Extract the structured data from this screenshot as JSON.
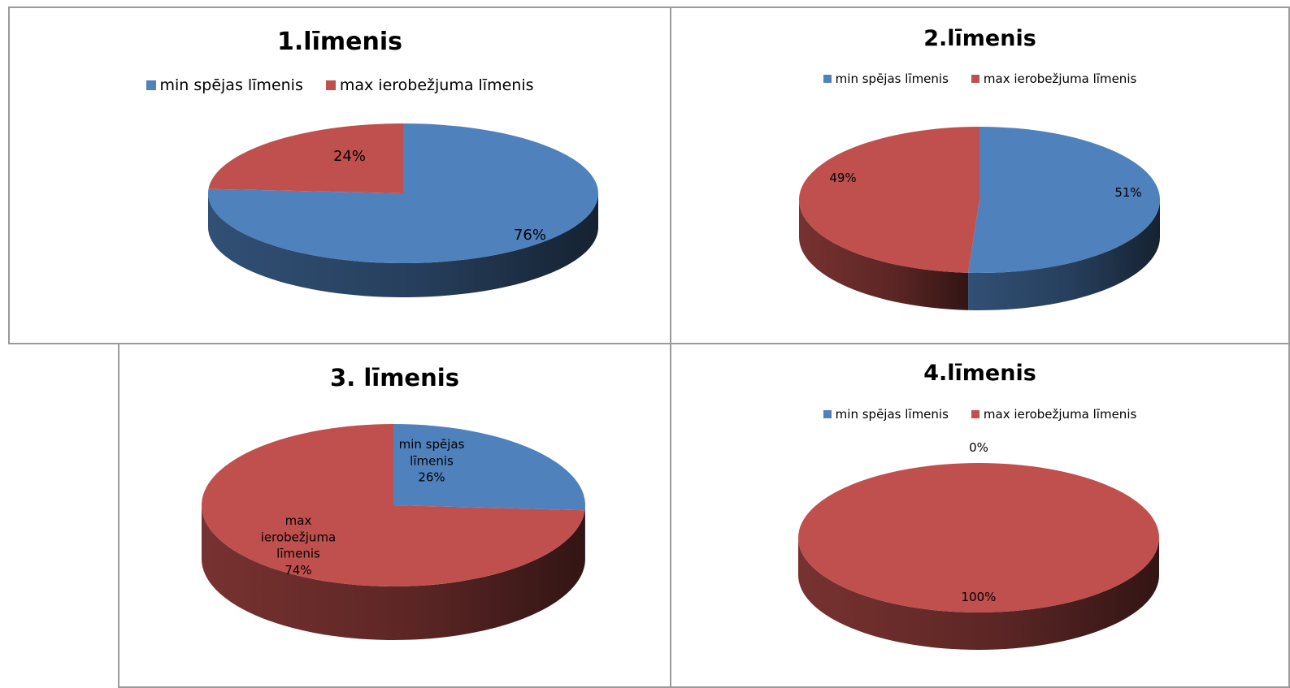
{
  "colors": {
    "min": "#4f81bd",
    "max": "#c0504d"
  },
  "chart_data": [
    {
      "type": "pie",
      "title": "1.līmenis",
      "legend": [
        "min spējas līmenis",
        "max ierobežjuma līmenis"
      ],
      "legend_position": "top",
      "categories": [
        "min spējas līmenis",
        "max ierobežjuma līmenis"
      ],
      "values": [
        76,
        24
      ],
      "data_labels": [
        "76%",
        "24%"
      ]
    },
    {
      "type": "pie",
      "title": "2.līmenis",
      "legend": [
        "min spējas līmenis",
        "max ierobežjuma līmenis"
      ],
      "legend_position": "top",
      "categories": [
        "min spējas līmenis",
        "max ierobežjuma līmenis"
      ],
      "values": [
        51,
        49
      ],
      "data_labels": [
        "51%",
        "49%"
      ]
    },
    {
      "type": "pie",
      "title": "3. līmenis",
      "legend": [],
      "legend_position": "none",
      "categories": [
        "min spējas līmenis",
        "max ierobežjuma līmenis"
      ],
      "values": [
        26,
        74
      ],
      "data_labels": [
        [
          "min spējas",
          "līmenis",
          "26%"
        ],
        [
          "max",
          "ierobežjuma",
          "līmenis",
          "74%"
        ]
      ]
    },
    {
      "type": "pie",
      "title": "4.līmenis",
      "legend": [
        "min spējas līmenis",
        "max ierobežjuma līmenis"
      ],
      "legend_position": "top",
      "categories": [
        "min spējas līmenis",
        "max ierobežjuma līmenis"
      ],
      "values": [
        0,
        100
      ],
      "data_labels": [
        "0%",
        "100%"
      ]
    }
  ]
}
